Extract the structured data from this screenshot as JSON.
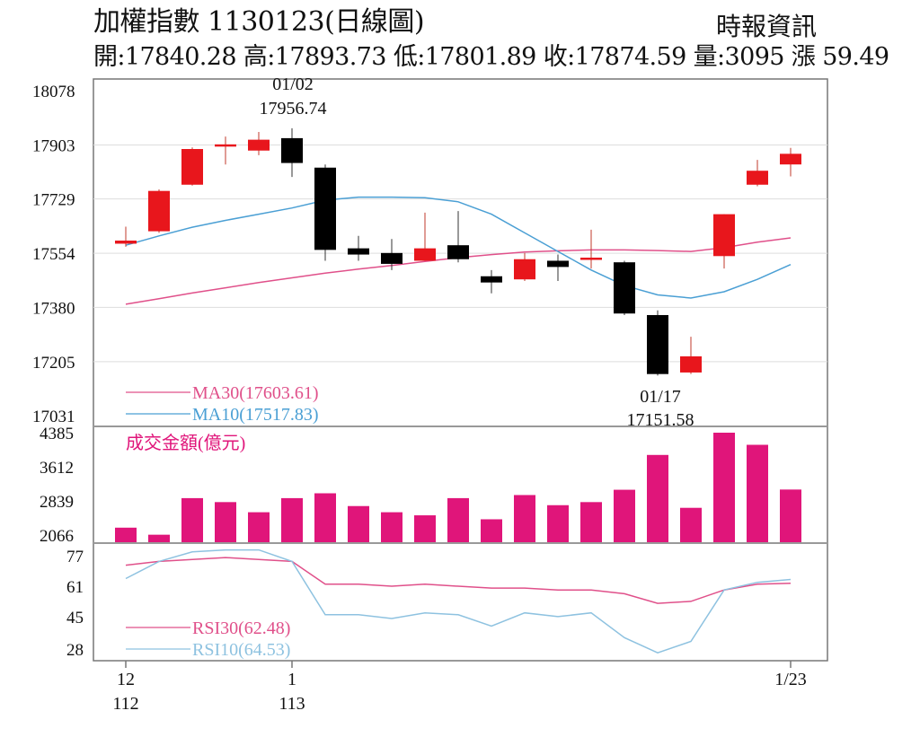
{
  "header": {
    "title": "加權指數 1130123(日線圖)",
    "source": "時報資訊",
    "ohlc": "開:17840.28 高:17893.73 低:17801.89 收:17874.59 量:3095 漲 59.49"
  },
  "colors": {
    "up": "#e8161c",
    "down": "#000000",
    "volume": "#e0157a",
    "ma30": "#e0508a",
    "ma10": "#4a9fd4",
    "rsi30": "#e0508a",
    "rsi10": "#8ec2e0",
    "grid": "#dddddd",
    "axis": "#777777"
  },
  "chart_data": [
    {
      "type": "candlestick",
      "yticks": [
        "18078",
        "17903",
        "17729",
        "17554",
        "17380",
        "17205",
        "17031"
      ],
      "ylim": [
        17031,
        18078
      ],
      "candles": [
        {
          "open": 17585,
          "high": 17640,
          "low": 17575,
          "close": 17595
        },
        {
          "open": 17625,
          "high": 17760,
          "low": 17620,
          "close": 17755
        },
        {
          "open": 17775,
          "high": 17895,
          "low": 17772,
          "close": 17890
        },
        {
          "open": 17900,
          "high": 17930,
          "low": 17840,
          "close": 17905
        },
        {
          "open": 17885,
          "high": 17945,
          "low": 17870,
          "close": 17920
        },
        {
          "open": 17925,
          "high": 17956.74,
          "low": 17800,
          "close": 17845
        },
        {
          "open": 17830,
          "high": 17840,
          "low": 17530,
          "close": 17565
        },
        {
          "open": 17570,
          "high": 17610,
          "low": 17530,
          "close": 17550
        },
        {
          "open": 17555,
          "high": 17600,
          "low": 17500,
          "close": 17520
        },
        {
          "open": 17530,
          "high": 17685,
          "low": 17530,
          "close": 17570
        },
        {
          "open": 17580,
          "high": 17690,
          "low": 17525,
          "close": 17535
        },
        {
          "open": 17480,
          "high": 17500,
          "low": 17425,
          "close": 17460
        },
        {
          "open": 17470,
          "high": 17555,
          "low": 17465,
          "close": 17535
        },
        {
          "open": 17530,
          "high": 17550,
          "low": 17465,
          "close": 17510
        },
        {
          "open": 17535,
          "high": 17630,
          "low": 17505,
          "close": 17540
        },
        {
          "open": 17525,
          "high": 17530,
          "low": 17355,
          "close": 17360
        },
        {
          "open": 17355,
          "high": 17370,
          "low": 17160,
          "close": 17165
        },
        {
          "open": 17170,
          "high": 17285,
          "low": 17165,
          "close": 17222
        },
        {
          "open": 17545,
          "high": 17680,
          "low": 17505,
          "close": 17680
        },
        {
          "open": 17775,
          "high": 17855,
          "low": 17770,
          "close": 17820
        },
        {
          "open": 17840.28,
          "high": 17893.73,
          "low": 17801.89,
          "close": 17874.59
        }
      ],
      "ma30": [
        17390,
        17408,
        17426,
        17443,
        17460,
        17475,
        17490,
        17503,
        17515,
        17528,
        17540,
        17550,
        17558,
        17562,
        17565,
        17565,
        17563,
        17560,
        17572,
        17590,
        17603.61
      ],
      "ma10": [
        17580,
        17610,
        17638,
        17660,
        17680,
        17700,
        17725,
        17735,
        17735,
        17733,
        17720,
        17680,
        17620,
        17560,
        17500,
        17450,
        17420,
        17410,
        17430,
        17470,
        17517.83
      ],
      "annotations": [
        {
          "date": "01/02",
          "value": "17956.74"
        },
        {
          "date": "01/17",
          "value": "17151.58"
        }
      ],
      "legend": [
        "MA30(17603.61)",
        "MA10(17517.83)"
      ]
    },
    {
      "type": "bar",
      "label": "成交金額(億元)",
      "yticks": [
        "4385",
        "3612",
        "2839",
        "2066"
      ],
      "ylim": [
        1900,
        4385
      ],
      "values": [
        2230,
        2070,
        2900,
        2810,
        2580,
        2900,
        3010,
        2720,
        2580,
        2510,
        2900,
        2420,
        2970,
        2740,
        2810,
        3090,
        3880,
        2680,
        4385,
        4110,
        3095
      ]
    },
    {
      "type": "line",
      "yticks": [
        "77",
        "61",
        "45",
        "28"
      ],
      "ylim": [
        28,
        77
      ],
      "rsi30": [
        72,
        74,
        75,
        76,
        75,
        74,
        62,
        62,
        61,
        62,
        61,
        60,
        60,
        59,
        59,
        57,
        52,
        53,
        59,
        62.0,
        62.48
      ],
      "rsi10": [
        65,
        74,
        79,
        80,
        80,
        74,
        46,
        46,
        44,
        47,
        46,
        40,
        47,
        45,
        47,
        34,
        26,
        32,
        59,
        63,
        64.53
      ],
      "legend": [
        "RSI30(62.48)",
        "RSI10(64.53)"
      ]
    }
  ],
  "x_axis": [
    {
      "label": "12",
      "sub": "112"
    },
    {
      "label": "1",
      "sub": "113"
    },
    {
      "label": "1/23",
      "sub": ""
    }
  ]
}
